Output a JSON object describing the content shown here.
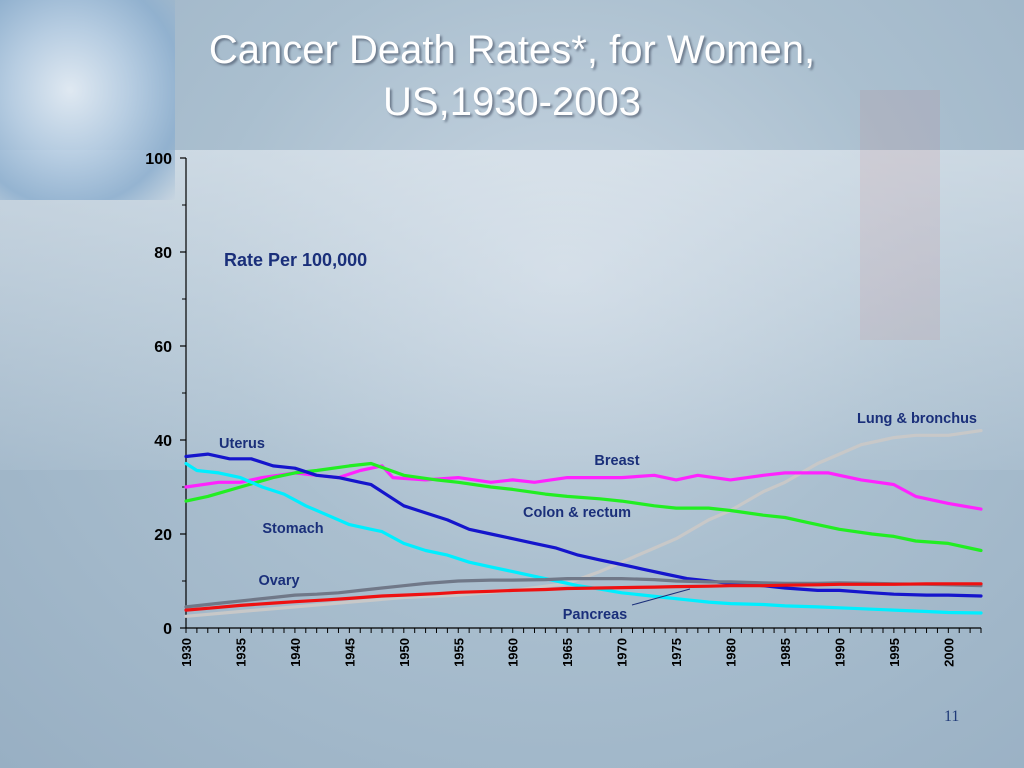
{
  "title_line1": "Cancer Death Rates*, for Women,",
  "title_line2": "US,1930-2003",
  "page_number": "11",
  "chart_data": {
    "type": "line",
    "title": "Cancer Death Rates*, for Women, US,1930-2003",
    "ylabel": "Rate Per 100,000",
    "xlabel": "",
    "xlim": [
      1930,
      2003
    ],
    "ylim": [
      0,
      100
    ],
    "yticks": [
      0,
      20,
      40,
      60,
      80,
      100
    ],
    "xticks": [
      1930,
      1935,
      1940,
      1945,
      1950,
      1955,
      1960,
      1965,
      1970,
      1975,
      1980,
      1985,
      1990,
      1995,
      2000
    ],
    "grid": false,
    "series": [
      {
        "name": "Lung & bronchus",
        "color": "#c8c8c8",
        "points": [
          [
            1930,
            2.5
          ],
          [
            1935,
            3.5
          ],
          [
            1940,
            4.5
          ],
          [
            1945,
            5.5
          ],
          [
            1950,
            6.5
          ],
          [
            1955,
            7
          ],
          [
            1960,
            8
          ],
          [
            1965,
            9.5
          ],
          [
            1968,
            12
          ],
          [
            1970,
            14
          ],
          [
            1973,
            17
          ],
          [
            1975,
            19
          ],
          [
            1978,
            23
          ],
          [
            1980,
            25
          ],
          [
            1983,
            29
          ],
          [
            1985,
            31
          ],
          [
            1988,
            35
          ],
          [
            1990,
            37
          ],
          [
            1992,
            39
          ],
          [
            1995,
            40.5
          ],
          [
            1997,
            41
          ],
          [
            2000,
            41
          ],
          [
            2003,
            42
          ]
        ]
      },
      {
        "name": "Breast",
        "color": "#ff22ff",
        "points": [
          [
            1930,
            30
          ],
          [
            1933,
            31
          ],
          [
            1935,
            31
          ],
          [
            1937,
            32
          ],
          [
            1940,
            33
          ],
          [
            1942,
            32.5
          ],
          [
            1944,
            32
          ],
          [
            1946,
            33.5
          ],
          [
            1948,
            34.5
          ],
          [
            1949,
            32
          ],
          [
            1952,
            31.5
          ],
          [
            1955,
            32
          ],
          [
            1958,
            31
          ],
          [
            1960,
            31.5
          ],
          [
            1962,
            31
          ],
          [
            1965,
            32
          ],
          [
            1968,
            32
          ],
          [
            1970,
            32
          ],
          [
            1973,
            32.5
          ],
          [
            1975,
            31.5
          ],
          [
            1977,
            32.5
          ],
          [
            1980,
            31.5
          ],
          [
            1983,
            32.5
          ],
          [
            1985,
            33
          ],
          [
            1987,
            33
          ],
          [
            1989,
            33
          ],
          [
            1990,
            32.5
          ],
          [
            1992,
            31.5
          ],
          [
            1995,
            30.5
          ],
          [
            1997,
            28
          ],
          [
            2000,
            26.5
          ],
          [
            2003,
            25.3
          ]
        ]
      },
      {
        "name": "Colon & rectum",
        "color": "#22ee22",
        "points": [
          [
            1930,
            27
          ],
          [
            1932,
            28
          ],
          [
            1935,
            30
          ],
          [
            1938,
            32
          ],
          [
            1940,
            33
          ],
          [
            1942,
            33.5
          ],
          [
            1945,
            34.5
          ],
          [
            1947,
            35
          ],
          [
            1950,
            32.5
          ],
          [
            1953,
            31.5
          ],
          [
            1955,
            31
          ],
          [
            1958,
            30
          ],
          [
            1960,
            29.5
          ],
          [
            1963,
            28.5
          ],
          [
            1965,
            28
          ],
          [
            1968,
            27.5
          ],
          [
            1970,
            27
          ],
          [
            1973,
            26
          ],
          [
            1975,
            25.5
          ],
          [
            1978,
            25.5
          ],
          [
            1980,
            25
          ],
          [
            1983,
            24
          ],
          [
            1985,
            23.5
          ],
          [
            1987,
            22.5
          ],
          [
            1990,
            21
          ],
          [
            1993,
            20
          ],
          [
            1995,
            19.5
          ],
          [
            1997,
            18.5
          ],
          [
            2000,
            18
          ],
          [
            2003,
            16.5
          ]
        ]
      },
      {
        "name": "Uterus",
        "color": "#1515cc",
        "points": [
          [
            1930,
            36.5
          ],
          [
            1932,
            37
          ],
          [
            1934,
            36
          ],
          [
            1936,
            36
          ],
          [
            1938,
            34.5
          ],
          [
            1940,
            34
          ],
          [
            1942,
            32.5
          ],
          [
            1944,
            32
          ],
          [
            1946,
            31
          ],
          [
            1947,
            30.5
          ],
          [
            1948,
            29
          ],
          [
            1950,
            26
          ],
          [
            1952,
            24.5
          ],
          [
            1954,
            23
          ],
          [
            1956,
            21
          ],
          [
            1958,
            20
          ],
          [
            1960,
            19
          ],
          [
            1962,
            18
          ],
          [
            1964,
            17
          ],
          [
            1966,
            15.5
          ],
          [
            1968,
            14.5
          ],
          [
            1970,
            13.5
          ],
          [
            1972,
            12.5
          ],
          [
            1974,
            11.5
          ],
          [
            1976,
            10.5
          ],
          [
            1978,
            10
          ],
          [
            1980,
            9.5
          ],
          [
            1983,
            9
          ],
          [
            1985,
            8.5
          ],
          [
            1988,
            8
          ],
          [
            1990,
            8
          ],
          [
            1993,
            7.5
          ],
          [
            1995,
            7.2
          ],
          [
            1998,
            7
          ],
          [
            2000,
            7
          ],
          [
            2003,
            6.8
          ]
        ]
      },
      {
        "name": "Stomach",
        "color": "#00eeff",
        "points": [
          [
            1930,
            35
          ],
          [
            1931,
            33.5
          ],
          [
            1933,
            33
          ],
          [
            1935,
            32
          ],
          [
            1937,
            30
          ],
          [
            1939,
            28.5
          ],
          [
            1941,
            26
          ],
          [
            1943,
            24
          ],
          [
            1945,
            22
          ],
          [
            1947,
            21
          ],
          [
            1948,
            20.5
          ],
          [
            1950,
            18
          ],
          [
            1952,
            16.5
          ],
          [
            1954,
            15.5
          ],
          [
            1956,
            14
          ],
          [
            1958,
            13
          ],
          [
            1960,
            12
          ],
          [
            1962,
            11
          ],
          [
            1964,
            10
          ],
          [
            1966,
            9
          ],
          [
            1968,
            8.3
          ],
          [
            1970,
            7.5
          ],
          [
            1972,
            7
          ],
          [
            1974,
            6.5
          ],
          [
            1976,
            6
          ],
          [
            1978,
            5.5
          ],
          [
            1980,
            5.2
          ],
          [
            1983,
            5
          ],
          [
            1985,
            4.7
          ],
          [
            1988,
            4.5
          ],
          [
            1990,
            4.3
          ],
          [
            1993,
            4
          ],
          [
            1995,
            3.8
          ],
          [
            1998,
            3.5
          ],
          [
            2000,
            3.3
          ],
          [
            2003,
            3.2
          ]
        ]
      },
      {
        "name": "Ovary",
        "color": "#707888",
        "points": [
          [
            1930,
            4.5
          ],
          [
            1932,
            5
          ],
          [
            1934,
            5.5
          ],
          [
            1936,
            6
          ],
          [
            1938,
            6.5
          ],
          [
            1940,
            7
          ],
          [
            1942,
            7.2
          ],
          [
            1944,
            7.5
          ],
          [
            1946,
            8
          ],
          [
            1948,
            8.5
          ],
          [
            1950,
            9
          ],
          [
            1952,
            9.5
          ],
          [
            1955,
            10
          ],
          [
            1958,
            10.2
          ],
          [
            1960,
            10.2
          ],
          [
            1963,
            10.3
          ],
          [
            1965,
            10.5
          ],
          [
            1968,
            10.5
          ],
          [
            1970,
            10.5
          ],
          [
            1973,
            10.3
          ],
          [
            1975,
            10
          ],
          [
            1978,
            9.8
          ],
          [
            1980,
            9.8
          ],
          [
            1983,
            9.6
          ],
          [
            1985,
            9.5
          ],
          [
            1988,
            9.5
          ],
          [
            1990,
            9.6
          ],
          [
            1993,
            9.5
          ],
          [
            1995,
            9.4
          ],
          [
            1998,
            9.3
          ],
          [
            2000,
            9.2
          ],
          [
            2003,
            9
          ]
        ]
      },
      {
        "name": "Pancreas",
        "color": "#ee1111",
        "points": [
          [
            1930,
            3.8
          ],
          [
            1932,
            4.2
          ],
          [
            1935,
            4.8
          ],
          [
            1938,
            5.3
          ],
          [
            1940,
            5.6
          ],
          [
            1943,
            6
          ],
          [
            1945,
            6.3
          ],
          [
            1948,
            6.8
          ],
          [
            1950,
            7
          ],
          [
            1953,
            7.3
          ],
          [
            1955,
            7.6
          ],
          [
            1958,
            7.8
          ],
          [
            1960,
            8
          ],
          [
            1963,
            8.2
          ],
          [
            1965,
            8.4
          ],
          [
            1968,
            8.5
          ],
          [
            1970,
            8.6
          ],
          [
            1973,
            8.7
          ],
          [
            1975,
            8.8
          ],
          [
            1978,
            8.9
          ],
          [
            1980,
            9
          ],
          [
            1983,
            9
          ],
          [
            1985,
            9.1
          ],
          [
            1988,
            9.2
          ],
          [
            1990,
            9.3
          ],
          [
            1993,
            9.3
          ],
          [
            1995,
            9.3
          ],
          [
            1998,
            9.4
          ],
          [
            2000,
            9.4
          ],
          [
            2003,
            9.4
          ]
        ]
      }
    ]
  }
}
